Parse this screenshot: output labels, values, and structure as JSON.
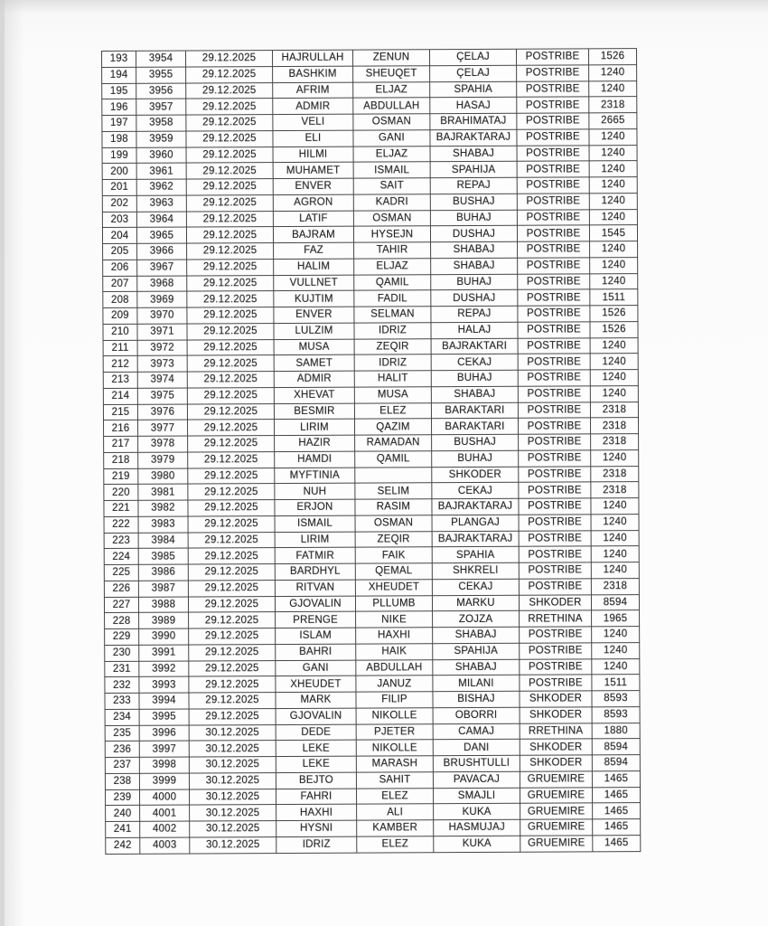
{
  "document": {
    "kind": "scanned registry table page",
    "visible_title": "",
    "dates_shown": [
      "29.12.2025",
      "30.12.2025"
    ],
    "locations_shown": [
      "POSTRIBE",
      "SHKODER",
      "RRETHINA",
      "GRUEMIRE"
    ]
  },
  "colors": {
    "paper": "#fbfbfb",
    "table_line": "#454545",
    "ink": "#212121",
    "scanner_edge": "#d7d7d8"
  },
  "table": {
    "row_count": 50,
    "rows": [
      [
        "193",
        "3954",
        "29.12.2025",
        "HAJRULLAH",
        "ZENUN",
        "ÇELAJ",
        "POSTRIBE",
        "1526"
      ],
      [
        "194",
        "3955",
        "29.12.2025",
        "BASHKIM",
        "SHEUQET",
        "ÇELAJ",
        "POSTRIBE",
        "1240"
      ],
      [
        "195",
        "3956",
        "29.12.2025",
        "AFRIM",
        "ELJAZ",
        "SPAHIA",
        "POSTRIBE",
        "1240"
      ],
      [
        "196",
        "3957",
        "29.12.2025",
        "ADMIR",
        "ABDULLAH",
        "HASAJ",
        "POSTRIBE",
        "2318"
      ],
      [
        "197",
        "3958",
        "29.12.2025",
        "VELI",
        "OSMAN",
        "BRAHIMATAJ",
        "POSTRIBE",
        "2665"
      ],
      [
        "198",
        "3959",
        "29.12.2025",
        "ELI",
        "GANI",
        "BAJRAKTARAJ",
        "POSTRIBE",
        "1240"
      ],
      [
        "199",
        "3960",
        "29.12.2025",
        "HILMI",
        "ELJAZ",
        "SHABAJ",
        "POSTRIBE",
        "1240"
      ],
      [
        "200",
        "3961",
        "29.12.2025",
        "MUHAMET",
        "ISMAIL",
        "SPAHIJA",
        "POSTRIBE",
        "1240"
      ],
      [
        "201",
        "3962",
        "29.12.2025",
        "ENVER",
        "SAIT",
        "REPAJ",
        "POSTRIBE",
        "1240"
      ],
      [
        "202",
        "3963",
        "29.12.2025",
        "AGRON",
        "KADRI",
        "BUSHAJ",
        "POSTRIBE",
        "1240"
      ],
      [
        "203",
        "3964",
        "29.12.2025",
        "LATIF",
        "OSMAN",
        "BUHAJ",
        "POSTRIBE",
        "1240"
      ],
      [
        "204",
        "3965",
        "29.12.2025",
        "BAJRAM",
        "HYSEJN",
        "DUSHAJ",
        "POSTRIBE",
        "1545"
      ],
      [
        "205",
        "3966",
        "29.12.2025",
        "FAZ",
        "TAHIR",
        "SHABAJ",
        "POSTRIBE",
        "1240"
      ],
      [
        "206",
        "3967",
        "29.12.2025",
        "HALIM",
        "ELJAZ",
        "SHABAJ",
        "POSTRIBE",
        "1240"
      ],
      [
        "207",
        "3968",
        "29.12.2025",
        "VULLNET",
        "QAMIL",
        "BUHAJ",
        "POSTRIBE",
        "1240"
      ],
      [
        "208",
        "3969",
        "29.12.2025",
        "KUJTIM",
        "FADIL",
        "DUSHAJ",
        "POSTRIBE",
        "1511"
      ],
      [
        "209",
        "3970",
        "29.12.2025",
        "ENVER",
        "SELMAN",
        "REPAJ",
        "POSTRIBE",
        "1526"
      ],
      [
        "210",
        "3971",
        "29.12.2025",
        "LULZIM",
        "IDRIZ",
        "HALAJ",
        "POSTRIBE",
        "1526"
      ],
      [
        "211",
        "3972",
        "29.12.2025",
        "MUSA",
        "ZEQIR",
        "BAJRAKTARI",
        "POSTRIBE",
        "1240"
      ],
      [
        "212",
        "3973",
        "29.12.2025",
        "SAMET",
        "IDRIZ",
        "CEKAJ",
        "POSTRIBE",
        "1240"
      ],
      [
        "213",
        "3974",
        "29.12.2025",
        "ADMIR",
        "HALIT",
        "BUHAJ",
        "POSTRIBE",
        "1240"
      ],
      [
        "214",
        "3975",
        "29.12.2025",
        "XHEVAT",
        "MUSA",
        "SHABAJ",
        "POSTRIBE",
        "1240"
      ],
      [
        "215",
        "3976",
        "29.12.2025",
        "BESMIR",
        "ELEZ",
        "BARAKTARI",
        "POSTRIBE",
        "2318"
      ],
      [
        "216",
        "3977",
        "29.12.2025",
        "LIRIM",
        "QAZIM",
        "BARAKTARI",
        "POSTRIBE",
        "2318"
      ],
      [
        "217",
        "3978",
        "29.12.2025",
        "HAZIR",
        "RAMADAN",
        "BUSHAJ",
        "POSTRIBE",
        "2318"
      ],
      [
        "218",
        "3979",
        "29.12.2025",
        "HAMDI",
        "QAMIL",
        "BUHAJ",
        "POSTRIBE",
        "1240"
      ],
      [
        "219",
        "3980",
        "29.12.2025",
        "MYFTINIA",
        "",
        "SHKODER",
        "POSTRIBE",
        "2318"
      ],
      [
        "220",
        "3981",
        "29.12.2025",
        "NUH",
        "SELIM",
        "CEKAJ",
        "POSTRIBE",
        "2318"
      ],
      [
        "221",
        "3982",
        "29.12.2025",
        "ERJON",
        "RASIM",
        "BAJRAKTARAJ",
        "POSTRIBE",
        "1240"
      ],
      [
        "222",
        "3983",
        "29.12.2025",
        "ISMAIL",
        "OSMAN",
        "PLANGAJ",
        "POSTRIBE",
        "1240"
      ],
      [
        "223",
        "3984",
        "29.12.2025",
        "LIRIM",
        "ZEQIR",
        "BAJRAKTARAJ",
        "POSTRIBE",
        "1240"
      ],
      [
        "224",
        "3985",
        "29.12.2025",
        "FATMIR",
        "FAIK",
        "SPAHIA",
        "POSTRIBE",
        "1240"
      ],
      [
        "225",
        "3986",
        "29.12.2025",
        "BARDHYL",
        "QEMAL",
        "SHKRELI",
        "POSTRIBE",
        "1240"
      ],
      [
        "226",
        "3987",
        "29.12.2025",
        "RITVAN",
        "XHEUDET",
        "CEKAJ",
        "POSTRIBE",
        "2318"
      ],
      [
        "227",
        "3988",
        "29.12.2025",
        "GJOVALIN",
        "PLLUMB",
        "MARKU",
        "SHKODER",
        "8594"
      ],
      [
        "228",
        "3989",
        "29.12.2025",
        "PRENGE",
        "NIKE",
        "ZOJZA",
        "RRETHINA",
        "1965"
      ],
      [
        "229",
        "3990",
        "29.12.2025",
        "ISLAM",
        "HAXHI",
        "SHABAJ",
        "POSTRIBE",
        "1240"
      ],
      [
        "230",
        "3991",
        "29.12.2025",
        "BAHRI",
        "HAIK",
        "SPAHIJA",
        "POSTRIBE",
        "1240"
      ],
      [
        "231",
        "3992",
        "29.12.2025",
        "GANI",
        "ABDULLAH",
        "SHABAJ",
        "POSTRIBE",
        "1240"
      ],
      [
        "232",
        "3993",
        "29.12.2025",
        "XHEUDET",
        "JANUZ",
        "MILANI",
        "POSTRIBE",
        "1511"
      ],
      [
        "233",
        "3994",
        "29.12.2025",
        "MARK",
        "FILIP",
        "BISHAJ",
        "SHKODER",
        "8593"
      ],
      [
        "234",
        "3995",
        "29.12.2025",
        "GJOVALIN",
        "NIKOLLE",
        "OBORRI",
        "SHKODER",
        "8593"
      ],
      [
        "235",
        "3996",
        "30.12.2025",
        "DEDE",
        "PJETER",
        "CAMAJ",
        "RRETHINA",
        "1880"
      ],
      [
        "236",
        "3997",
        "30.12.2025",
        "LEKE",
        "NIKOLLE",
        "DANI",
        "SHKODER",
        "8594"
      ],
      [
        "237",
        "3998",
        "30.12.2025",
        "LEKE",
        "MARASH",
        "BRUSHTULLI",
        "SHKODER",
        "8594"
      ],
      [
        "238",
        "3999",
        "30.12.2025",
        "BEJTO",
        "SAHIT",
        "PAVACAJ",
        "GRUEMIRE",
        "1465"
      ],
      [
        "239",
        "4000",
        "30.12.2025",
        "FAHRI",
        "ELEZ",
        "SMAJLI",
        "GRUEMIRE",
        "1465"
      ],
      [
        "240",
        "4001",
        "30.12.2025",
        "HAXHI",
        "ALI",
        "KUKA",
        "GRUEMIRE",
        "1465"
      ],
      [
        "241",
        "4002",
        "30.12.2025",
        "HYSNI",
        "KAMBER",
        "HASMUJAJ",
        "GRUEMIRE",
        "1465"
      ],
      [
        "242",
        "4003",
        "30.12.2025",
        "IDRIZ",
        "ELEZ",
        "KUKA",
        "GRUEMIRE",
        "1465"
      ]
    ]
  }
}
